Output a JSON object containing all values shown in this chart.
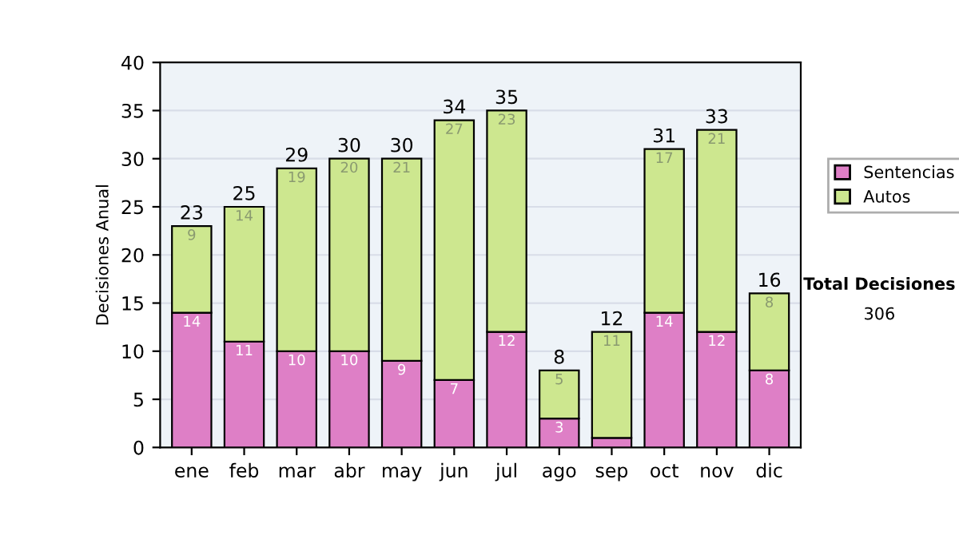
{
  "chart_data": {
    "type": "bar",
    "stacked": true,
    "ylabel": "Decisiones Anual",
    "categories": [
      "ene",
      "feb",
      "mar",
      "abr",
      "may",
      "jun",
      "jul",
      "ago",
      "sep",
      "oct",
      "nov",
      "dic"
    ],
    "series": [
      {
        "name": "Sentencias",
        "color": "#de7fc6",
        "values": [
          14,
          11,
          10,
          10,
          9,
          7,
          12,
          3,
          1,
          14,
          12,
          8
        ],
        "value_labels": [
          "14",
          "11",
          "10",
          "10",
          "9",
          "7",
          "12",
          "3",
          null,
          "14",
          "12",
          "8"
        ]
      },
      {
        "name": "Autos",
        "color": "#cde78f",
        "values": [
          9,
          14,
          19,
          20,
          21,
          27,
          23,
          5,
          11,
          17,
          21,
          8
        ],
        "value_labels": [
          "9",
          "14",
          "19",
          "20",
          "21",
          "27",
          "23",
          "5",
          "11",
          "17",
          "21",
          "8"
        ]
      }
    ],
    "totals": [
      "23",
      "25",
      "29",
      "30",
      "30",
      "34",
      "35",
      "8",
      "12",
      "31",
      "33",
      "16"
    ],
    "ylim": [
      0,
      40
    ],
    "yticks": [
      0,
      5,
      10,
      15,
      20,
      25,
      30,
      35,
      40
    ],
    "grid": "y",
    "legend": "right",
    "annotations": [
      "Total Decisiones",
      "306"
    ]
  }
}
